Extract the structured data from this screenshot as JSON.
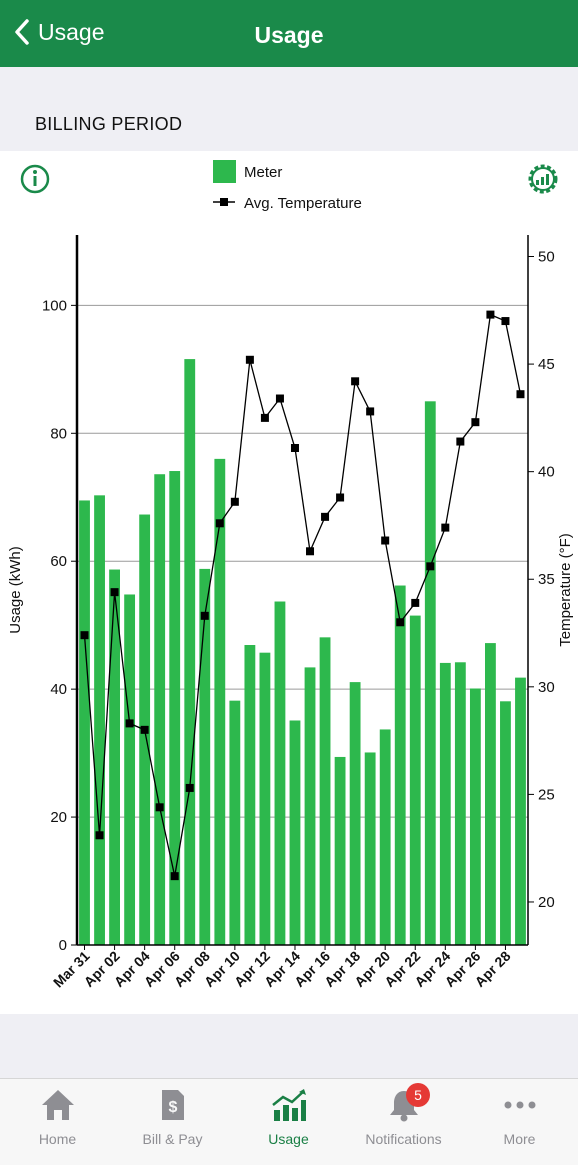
{
  "header": {
    "back_label": "Usage",
    "title": "Usage"
  },
  "section": {
    "title": "BILLING PERIOD"
  },
  "chart_data": {
    "type": "bar",
    "categories": [
      "Mar 31",
      "Apr 01",
      "Apr 02",
      "Apr 03",
      "Apr 04",
      "Apr 05",
      "Apr 06",
      "Apr 07",
      "Apr 08",
      "Apr 09",
      "Apr 10",
      "Apr 11",
      "Apr 12",
      "Apr 13",
      "Apr 14",
      "Apr 15",
      "Apr 16",
      "Apr 17",
      "Apr 18",
      "Apr 19",
      "Apr 20",
      "Apr 21",
      "Apr 22",
      "Apr 23",
      "Apr 24",
      "Apr 25",
      "Apr 26",
      "Apr 27",
      "Apr 28",
      "Apr 29"
    ],
    "tick_labels": [
      "Mar 31",
      "Apr 02",
      "Apr 04",
      "Apr 06",
      "Apr 08",
      "Apr 10",
      "Apr 12",
      "Apr 14",
      "Apr 16",
      "Apr 18",
      "Apr 20",
      "Apr 22",
      "Apr 24",
      "Apr 26",
      "Apr 28"
    ],
    "series": [
      {
        "name": "Meter",
        "axis": "left",
        "color": "#2db84d",
        "values": [
          69.5,
          70.3,
          58.7,
          54.8,
          67.3,
          73.6,
          74.1,
          91.6,
          58.8,
          76.0,
          38.2,
          46.9,
          45.7,
          53.7,
          35.1,
          43.4,
          48.1,
          29.4,
          41.1,
          30.1,
          33.7,
          56.2,
          51.5,
          85.0,
          44.1,
          44.2,
          40.1,
          47.2,
          38.1,
          41.8
        ]
      },
      {
        "name": "Avg. Temperature",
        "axis": "right",
        "type": "line",
        "color": "#000000",
        "values": [
          32.4,
          23.1,
          34.4,
          28.3,
          28.0,
          24.4,
          21.2,
          25.3,
          33.3,
          37.6,
          38.6,
          45.2,
          42.5,
          43.4,
          41.1,
          36.3,
          37.9,
          38.8,
          44.2,
          42.8,
          36.8,
          33.0,
          33.9,
          35.6,
          37.4,
          41.4,
          42.3,
          47.3,
          47.0,
          43.6
        ]
      }
    ],
    "ylabel": "Usage (kWh)",
    "y2label": "Temperature (°F)",
    "ylim": [
      0,
      111
    ],
    "y2lim": [
      18,
      51
    ],
    "yticks": [
      0,
      20,
      40,
      60,
      80,
      100
    ],
    "y2ticks": [
      20,
      25,
      30,
      35,
      40,
      45,
      50
    ],
    "grid": true,
    "legend_position": "top-center"
  },
  "tabs": [
    {
      "label": "Home",
      "icon": "home-icon",
      "active": false
    },
    {
      "label": "Bill & Pay",
      "icon": "bill-icon",
      "active": false
    },
    {
      "label": "Usage",
      "icon": "usage-chart-icon",
      "active": true
    },
    {
      "label": "Notifications",
      "icon": "bell-icon",
      "active": false,
      "badge": "5"
    },
    {
      "label": "More",
      "icon": "more-icon",
      "active": false
    }
  ],
  "colors": {
    "brand": "#1a8a4a",
    "bar": "#2db84d",
    "active_tab": "#1a7f45",
    "badge": "#e53935"
  }
}
